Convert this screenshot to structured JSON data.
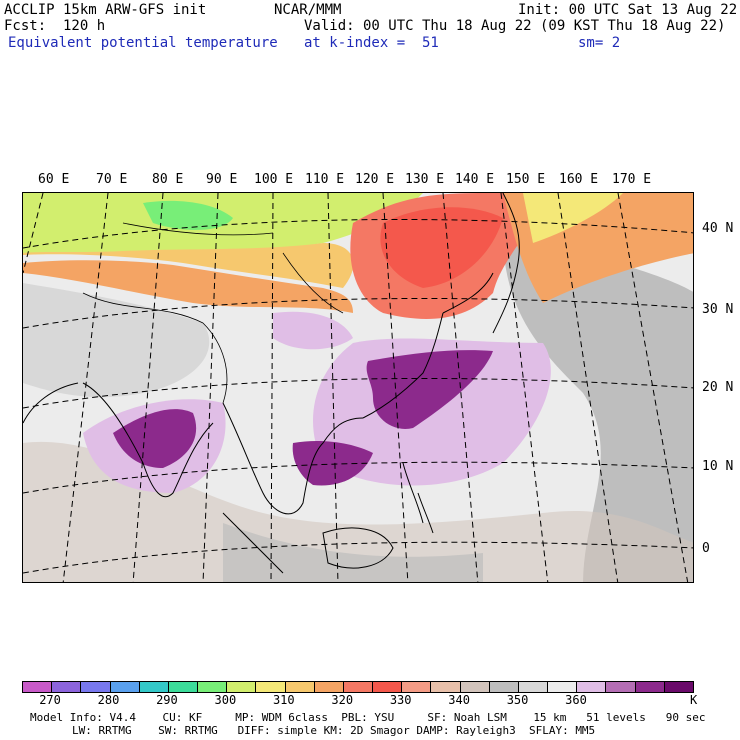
{
  "header": {
    "model_line": "ACCLIP 15km ARW-GFS init",
    "fcst_line": "Fcst:  120 h",
    "field_name": "Equivalent potential temperature",
    "center_name": "NCAR/MMM",
    "init_line": "Init: 00 UTC Sat 13 Aug 22",
    "valid_line": "Valid: 00 UTC Thu 18 Aug 22 (09 KST Thu 18 Aug 22)",
    "level_line": "at k-index =  51",
    "smooth_line": "sm= 2"
  },
  "map": {
    "longitude_labels": [
      "60 E",
      "70 E",
      "80 E",
      "90 E",
      "100 E",
      "110 E",
      "120 E",
      "130 E",
      "140 E",
      "150 E",
      "160 E",
      "170 E"
    ],
    "latitude_labels": [
      "40 N",
      "30 N",
      "20 N",
      "10 N",
      "0"
    ],
    "colors": {
      "land_line": "#000000",
      "grid_line": "#000000"
    }
  },
  "colorbar": {
    "unit": "K",
    "tick_labels": [
      "270",
      "280",
      "290",
      "300",
      "310",
      "320",
      "330",
      "340",
      "350",
      "360"
    ],
    "colors": [
      "#c85ac8",
      "#8c64dc",
      "#7878ee",
      "#5aa0ee",
      "#34c8c8",
      "#3cdc9a",
      "#78ee78",
      "#d2ee6e",
      "#f4e878",
      "#f6c86e",
      "#f4a464",
      "#f47864",
      "#f4584c",
      "#f49c86",
      "#e8c0aa",
      "#d2c4bc",
      "#bebebe",
      "#d8d8d8",
      "#ececec",
      "#e0bee6",
      "#b46eb4",
      "#8c2a8c",
      "#6a0a6a"
    ]
  },
  "footer": {
    "line1": "Model Info: V4.4    CU: KF     MP: WDM 6class  PBL: YSU     SF: Noah LSM    15 km   51 levels   90 sec",
    "line2": "LW: RRTMG    SW: RRTMG   DIFF: simple KM: 2D Smagor DAMP: Rayleigh3  SFLAY: MM5"
  }
}
